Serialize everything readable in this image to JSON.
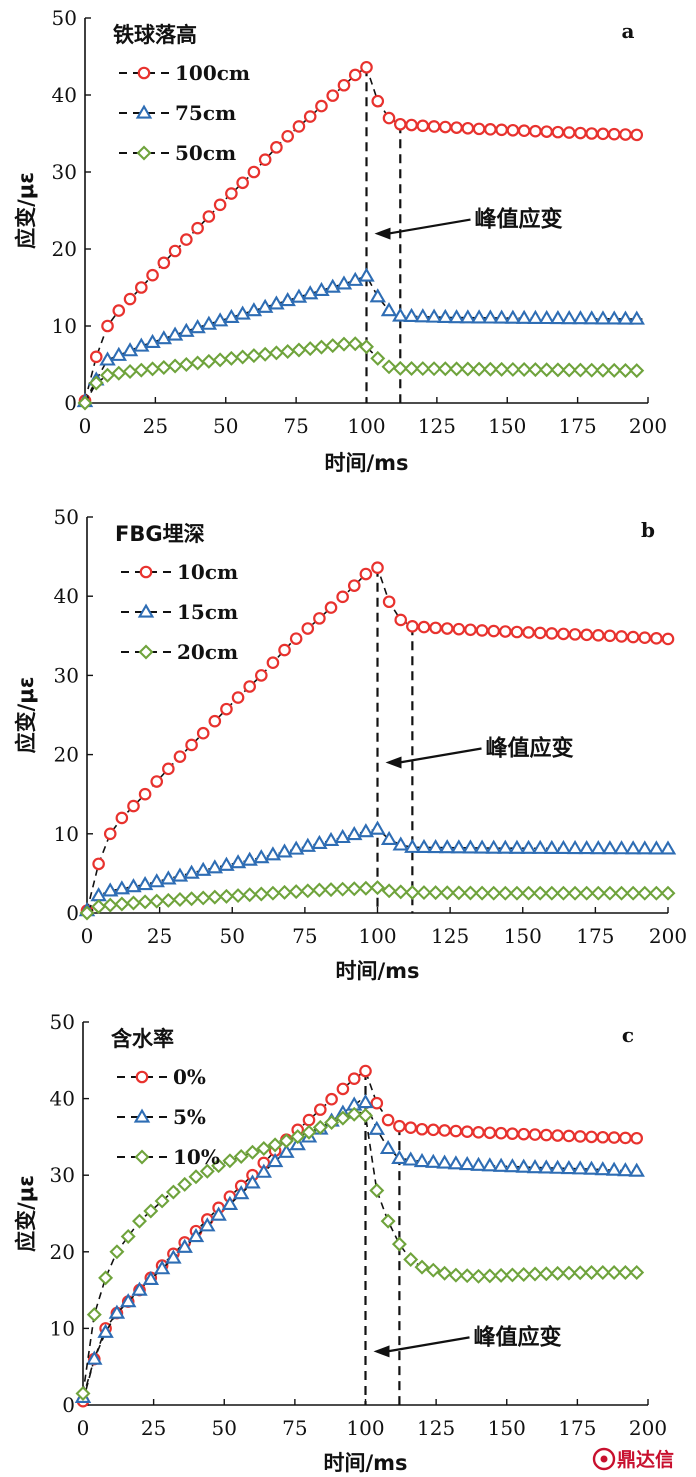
{
  "watermark": {
    "text": "鼎达信"
  },
  "colors": {
    "red": "#e8322e",
    "blue": "#2e6db4",
    "green": "#6fa33c",
    "axis": "#111111",
    "guide": "#111111"
  },
  "chart_data": [
    {
      "type": "scatter",
      "panel": "a",
      "legend_title": "铁球落高",
      "xlabel": "时间/ms",
      "ylabel": "应变/μɛ",
      "xlim": [
        0,
        200
      ],
      "ylim": [
        0,
        50
      ],
      "xticks": [
        0,
        25,
        50,
        75,
        100,
        125,
        150,
        175,
        200
      ],
      "yticks": [
        0,
        10,
        20,
        30,
        40,
        50
      ],
      "grid": false,
      "legend_position": "top-left",
      "annotation": {
        "text": "峰值应变",
        "arrow_to": [
          100,
          22
        ]
      },
      "guides_x": [
        100,
        112
      ],
      "series": [
        {
          "name": "100cm",
          "marker": "circle",
          "color": "#e8322e",
          "key_points": [
            [
              0,
              0.3
            ],
            [
              4,
              6
            ],
            [
              8,
              10
            ],
            [
              12,
              12
            ],
            [
              20,
              15
            ],
            [
              30,
              19
            ],
            [
              40,
              22.7
            ],
            [
              50,
              26.5
            ],
            [
              60,
              30
            ],
            [
              70,
              34
            ],
            [
              80,
              37.2
            ],
            [
              90,
              40.6
            ],
            [
              96,
              42.6
            ],
            [
              100,
              43.6
            ],
            [
              104,
              39.2
            ],
            [
              108,
              37
            ],
            [
              112,
              36.2
            ],
            [
              120,
              36
            ],
            [
              140,
              35.6
            ],
            [
              160,
              35.3
            ],
            [
              180,
              35
            ],
            [
              198,
              34.8
            ]
          ],
          "cutoff_x": 198
        },
        {
          "name": "75cm",
          "marker": "triangle",
          "color": "#2e6db4",
          "key_points": [
            [
              0,
              0.2
            ],
            [
              4,
              3
            ],
            [
              8,
              5.6
            ],
            [
              12,
              6.2
            ],
            [
              20,
              7.4
            ],
            [
              40,
              9.8
            ],
            [
              60,
              12
            ],
            [
              80,
              14.2
            ],
            [
              95,
              15.8
            ],
            [
              100,
              16.5
            ],
            [
              104,
              13.8
            ],
            [
              108,
              12
            ],
            [
              112,
              11.3
            ],
            [
              130,
              11.1
            ],
            [
              160,
              11
            ],
            [
              198,
              10.9
            ]
          ],
          "cutoff_x": 198
        },
        {
          "name": "50cm",
          "marker": "diamond",
          "color": "#6fa33c",
          "key_points": [
            [
              0,
              0
            ],
            [
              4,
              2.6
            ],
            [
              8,
              3.6
            ],
            [
              14,
              4
            ],
            [
              30,
              4.7
            ],
            [
              50,
              5.7
            ],
            [
              70,
              6.6
            ],
            [
              85,
              7.3
            ],
            [
              95,
              7.8
            ],
            [
              100,
              7.3
            ],
            [
              104,
              5.8
            ],
            [
              108,
              4.7
            ],
            [
              112,
              4.5
            ],
            [
              140,
              4.4
            ],
            [
              198,
              4.2
            ]
          ],
          "cutoff_x": 198
        }
      ]
    },
    {
      "type": "scatter",
      "panel": "b",
      "legend_title": "FBG埋深",
      "xlabel": "时间/ms",
      "ylabel": "应变/μɛ",
      "xlim": [
        0,
        200
      ],
      "ylim": [
        0,
        50
      ],
      "xticks": [
        0,
        25,
        50,
        75,
        100,
        125,
        150,
        175,
        200
      ],
      "yticks": [
        0,
        10,
        20,
        30,
        40,
        50
      ],
      "grid": false,
      "legend_position": "top-left",
      "annotation": {
        "text": "峰值应变",
        "arrow_to": [
          100,
          19
        ]
      },
      "guides_x": [
        100,
        112
      ],
      "series": [
        {
          "name": "10cm",
          "marker": "circle",
          "color": "#e8322e",
          "key_points": [
            [
              0,
              0.3
            ],
            [
              4,
              6.2
            ],
            [
              8,
              10
            ],
            [
              12,
              12
            ],
            [
              20,
              15
            ],
            [
              30,
              19
            ],
            [
              40,
              22.7
            ],
            [
              50,
              26.5
            ],
            [
              60,
              30
            ],
            [
              70,
              34
            ],
            [
              80,
              37.2
            ],
            [
              90,
              40.6
            ],
            [
              96,
              42.8
            ],
            [
              100,
              43.6
            ],
            [
              104,
              39.3
            ],
            [
              108,
              37
            ],
            [
              112,
              36.2
            ],
            [
              120,
              36
            ],
            [
              140,
              35.6
            ],
            [
              160,
              35.3
            ],
            [
              180,
              35
            ],
            [
              200,
              34.6
            ]
          ],
          "cutoff_x": 200
        },
        {
          "name": "15cm",
          "marker": "triangle",
          "color": "#2e6db4",
          "key_points": [
            [
              0,
              0.3
            ],
            [
              4,
              2.2
            ],
            [
              8,
              2.8
            ],
            [
              20,
              3.6
            ],
            [
              40,
              5.4
            ],
            [
              60,
              7
            ],
            [
              80,
              8.8
            ],
            [
              95,
              10.2
            ],
            [
              100,
              10.6
            ],
            [
              104,
              9.3
            ],
            [
              108,
              8.6
            ],
            [
              112,
              8.3
            ],
            [
              140,
              8.2
            ],
            [
              200,
              8.1
            ]
          ],
          "cutoff_x": 200
        },
        {
          "name": "20cm",
          "marker": "diamond",
          "color": "#6fa33c",
          "key_points": [
            [
              0,
              0
            ],
            [
              4,
              0.8
            ],
            [
              8,
              1
            ],
            [
              20,
              1.4
            ],
            [
              40,
              1.9
            ],
            [
              60,
              2.4
            ],
            [
              80,
              2.9
            ],
            [
              95,
              3.1
            ],
            [
              100,
              3.2
            ],
            [
              104,
              2.8
            ],
            [
              110,
              2.6
            ],
            [
              140,
              2.5
            ],
            [
              200,
              2.5
            ]
          ],
          "cutoff_x": 200
        }
      ]
    },
    {
      "type": "scatter",
      "panel": "c",
      "legend_title": "含水率",
      "xlabel": "时间/ms",
      "ylabel": "应变/μɛ",
      "xlim": [
        0,
        200
      ],
      "ylim": [
        0,
        50
      ],
      "xticks": [
        0,
        25,
        50,
        75,
        100,
        125,
        150,
        175,
        200
      ],
      "yticks": [
        0,
        10,
        20,
        30,
        40,
        50
      ],
      "grid": false,
      "legend_position": "top-left",
      "annotation": {
        "text": "峰值应变",
        "arrow_to": [
          100,
          7
        ]
      },
      "guides_x": [
        100,
        112
      ],
      "series": [
        {
          "name": "0%",
          "marker": "circle",
          "color": "#e8322e",
          "key_points": [
            [
              0,
              0.5
            ],
            [
              4,
              6
            ],
            [
              8,
              10
            ],
            [
              12,
              12
            ],
            [
              20,
              15
            ],
            [
              30,
              19
            ],
            [
              40,
              22.7
            ],
            [
              50,
              26.5
            ],
            [
              60,
              30
            ],
            [
              70,
              34
            ],
            [
              80,
              37.2
            ],
            [
              90,
              40.6
            ],
            [
              96,
              42.6
            ],
            [
              100,
              43.6
            ],
            [
              104,
              39.4
            ],
            [
              108,
              37.2
            ],
            [
              112,
              36.4
            ],
            [
              120,
              36
            ],
            [
              140,
              35.6
            ],
            [
              160,
              35.3
            ],
            [
              180,
              35
            ],
            [
              198,
              34.8
            ]
          ],
          "cutoff_x": 198
        },
        {
          "name": "5%",
          "marker": "triangle",
          "color": "#2e6db4",
          "key_points": [
            [
              0,
              1
            ],
            [
              4,
              6
            ],
            [
              8,
              9.5
            ],
            [
              12,
              12
            ],
            [
              20,
              15
            ],
            [
              30,
              18.5
            ],
            [
              40,
              22
            ],
            [
              50,
              25.5
            ],
            [
              60,
              29
            ],
            [
              70,
              32.5
            ],
            [
              80,
              35
            ],
            [
              90,
              37.6
            ],
            [
              98,
              39.7
            ],
            [
              100,
              39.5
            ],
            [
              104,
              36
            ],
            [
              108,
              33.5
            ],
            [
              112,
              32.2
            ],
            [
              120,
              31.8
            ],
            [
              140,
              31.3
            ],
            [
              160,
              31
            ],
            [
              180,
              30.8
            ],
            [
              198,
              30.5
            ]
          ],
          "cutoff_x": 198
        },
        {
          "name": "10%",
          "marker": "diamond",
          "color": "#6fa33c",
          "key_points": [
            [
              0,
              1.5
            ],
            [
              4,
              11.8
            ],
            [
              8,
              16.6
            ],
            [
              12,
              20
            ],
            [
              20,
              24
            ],
            [
              30,
              27.3
            ],
            [
              40,
              29.8
            ],
            [
              50,
              31.6
            ],
            [
              60,
              33
            ],
            [
              70,
              34.2
            ],
            [
              80,
              35.6
            ],
            [
              90,
              37.2
            ],
            [
              98,
              38.2
            ],
            [
              100,
              37.8
            ],
            [
              104,
              28
            ],
            [
              108,
              24
            ],
            [
              112,
              21
            ],
            [
              116,
              19
            ],
            [
              120,
              18
            ],
            [
              130,
              17
            ],
            [
              140,
              16.8
            ],
            [
              160,
              17.1
            ],
            [
              180,
              17.3
            ],
            [
              198,
              17.3
            ]
          ],
          "cutoff_x": 198
        }
      ]
    }
  ]
}
